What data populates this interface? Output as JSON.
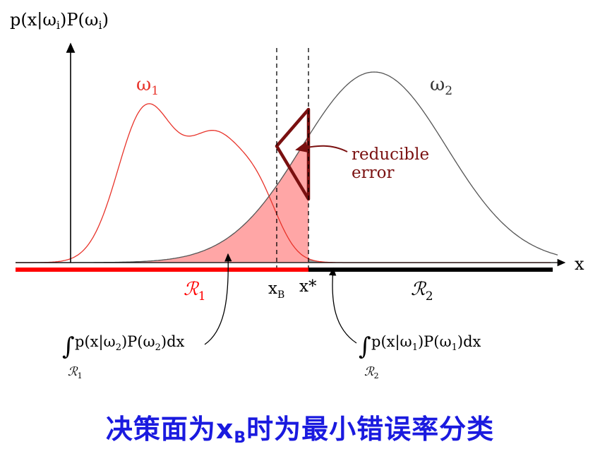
{
  "diagram": {
    "y_axis_label_parts": [
      "p(x|ω",
      "i",
      ")P(ω",
      "i",
      ")"
    ],
    "x_axis_label": "x",
    "class1_parts": [
      "ω",
      "1"
    ],
    "class2_parts": [
      "ω",
      "2"
    ],
    "region1_parts": [
      "ℛ",
      "1"
    ],
    "region2_parts": [
      "ℛ",
      "2"
    ],
    "xB_parts": [
      "x",
      "B"
    ],
    "xstar_label": "x*",
    "reducible_error_lines": [
      "reducible",
      "error"
    ],
    "integral_left": {
      "symbol": "∫",
      "expr": [
        "p(x|ω",
        "2",
        ")P(ω",
        "2",
        ")dx"
      ],
      "region": [
        "ℛ",
        "1"
      ]
    },
    "integral_right": {
      "symbol": "∫",
      "expr": [
        "p(x|ω",
        "1",
        ")P(ω",
        "1",
        ")dx"
      ],
      "region": [
        "ℛ",
        "2"
      ]
    }
  },
  "caption": {
    "main": "决策面为x",
    "sub": "B",
    "rest": "时为最小错误率分类"
  },
  "colors": {
    "class1": "#e8332a",
    "class2": "#555555",
    "region1": "#ff0000",
    "region2": "#000000",
    "fill_red": "#ffa6a6",
    "fill_gray": "#999999",
    "reducible": "#7a1010",
    "caption": "#1a1adf"
  }
}
